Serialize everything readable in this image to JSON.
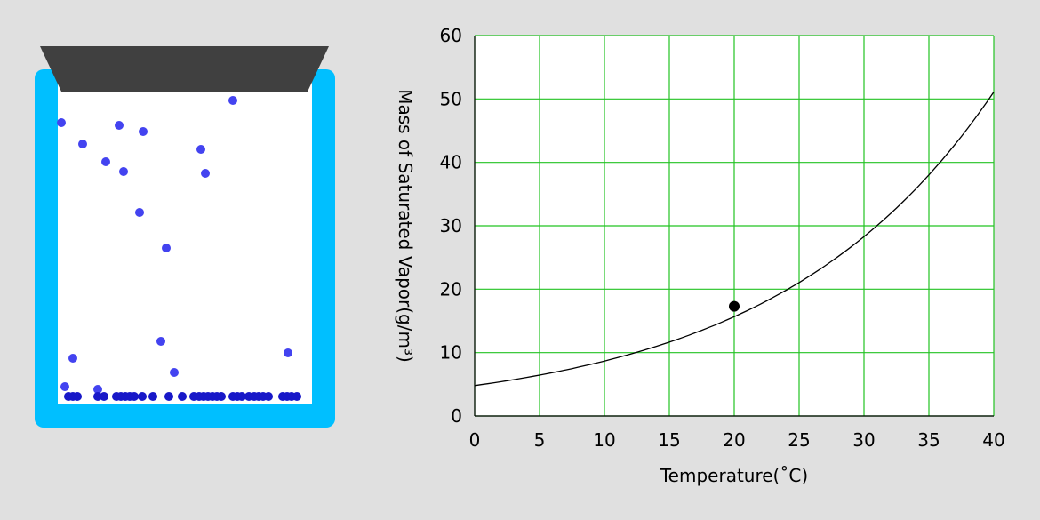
{
  "colors": {
    "background": "#e0e0e0",
    "container_wall": "#00bfff",
    "container_inner": "#ffffff",
    "lid": "#404040",
    "particle_floating": "#4343f0",
    "particle_settled": "#1818c8",
    "grid": "#22c322",
    "curve": "#000000",
    "marker": "#000000"
  },
  "simulation": {
    "name": "vapor container",
    "floating_particles": 19,
    "settled_particles": 47
  },
  "chart_data": {
    "type": "line",
    "xlabel": "Temperature(˚C)",
    "ylabel": "Mass of Saturated Vapor(g/m³)",
    "xlim": [
      0,
      40
    ],
    "ylim": [
      0,
      60
    ],
    "x_ticks": [
      "0",
      "5",
      "10",
      "15",
      "20",
      "25",
      "30",
      "35",
      "40"
    ],
    "y_ticks": [
      "0",
      "10",
      "20",
      "30",
      "40",
      "50",
      "60"
    ],
    "grid": true,
    "series": [
      {
        "x": [
          0,
          5,
          10,
          15,
          20,
          25,
          30,
          35,
          40
        ],
        "y": [
          4.8,
          6.8,
          9.4,
          12.8,
          17.3,
          23.0,
          30.4,
          39.6,
          51.1
        ]
      }
    ],
    "highlight_point": {
      "x": 20,
      "y": 17.3
    }
  }
}
